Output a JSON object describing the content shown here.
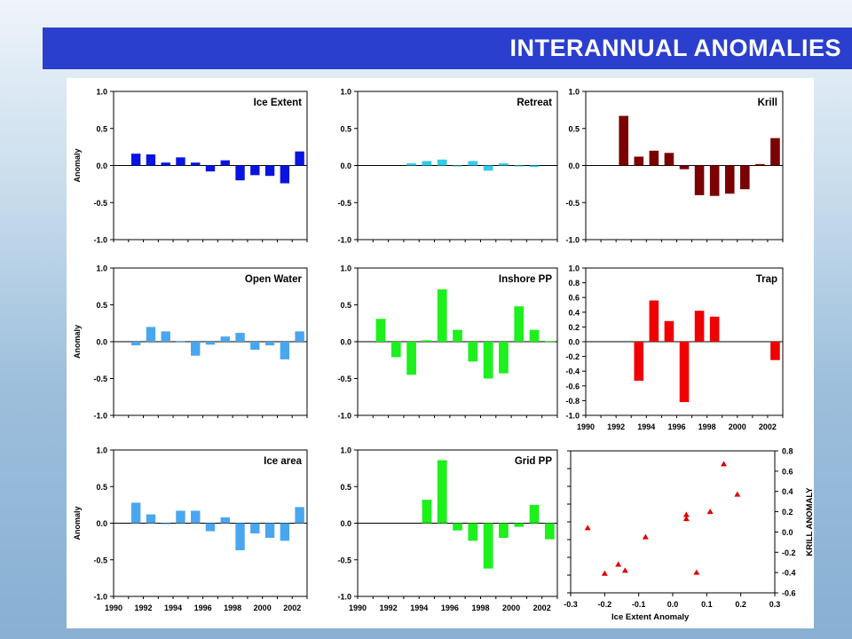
{
  "page": {
    "title": "INTERANNUAL ANOMALIES"
  },
  "chart_data": [
    {
      "id": "ice-extent",
      "type": "bar",
      "title": "Ice Extent",
      "ylabel": "Anomaly",
      "xlabel": "",
      "color": "#0a14e0",
      "ylim": [
        -1,
        1
      ],
      "yticks": [
        "1.0",
        "0.5",
        "0.0",
        "-0.5",
        "-1.0"
      ],
      "x": [
        1991,
        1992,
        1993,
        1994,
        1995,
        1996,
        1997,
        1998,
        1999,
        2000,
        2001,
        2002
      ],
      "values": [
        0.16,
        0.15,
        0.04,
        0.11,
        0.04,
        -0.08,
        0.07,
        -0.2,
        -0.13,
        -0.14,
        -0.24,
        0.19
      ]
    },
    {
      "id": "retreat",
      "type": "bar",
      "title": "Retreat",
      "ylabel": "",
      "xlabel": "",
      "color": "#33cbe8",
      "ylim": [
        -1,
        1
      ],
      "yticks": [
        "1.0",
        "0.5",
        "0.0",
        "-0.5",
        "-1.0"
      ],
      "x": [
        1993,
        1994,
        1995,
        1996,
        1997,
        1998,
        1999,
        2000,
        2001
      ],
      "values": [
        0.03,
        0.06,
        0.08,
        -0.01,
        0.06,
        -0.07,
        0.03,
        -0.01,
        -0.02
      ]
    },
    {
      "id": "krill",
      "type": "bar",
      "title": "Krill",
      "ylabel": "",
      "xlabel": "",
      "color": "#7a0000",
      "ylim": [
        -1,
        1
      ],
      "yticks": [
        "1.0",
        "0.5",
        "0.0",
        "-0.5",
        "-1.0"
      ],
      "x": [
        1992,
        1993,
        1994,
        1995,
        1996,
        1997,
        1998,
        1999,
        2000,
        2001,
        2002
      ],
      "values": [
        0.67,
        0.12,
        0.2,
        0.17,
        -0.05,
        -0.4,
        -0.41,
        -0.38,
        -0.32,
        0.02,
        0.37
      ]
    },
    {
      "id": "open-water",
      "type": "bar",
      "title": "Open Water",
      "ylabel": "Anomaly",
      "xlabel": "",
      "color": "#4aa6ee",
      "ylim": [
        -1,
        1
      ],
      "yticks": [
        "1.0",
        "0.5",
        "0.0",
        "-0.5",
        "-1.0"
      ],
      "x": [
        1991,
        1992,
        1993,
        1994,
        1995,
        1996,
        1997,
        1998,
        1999,
        2000,
        2001,
        2002
      ],
      "values": [
        -0.05,
        0.2,
        0.14,
        0.01,
        -0.19,
        -0.04,
        0.07,
        0.12,
        -0.11,
        -0.05,
        -0.24,
        0.14
      ]
    },
    {
      "id": "inshore-pp",
      "type": "bar",
      "title": "Inshore PP",
      "ylabel": "",
      "xlabel": "",
      "color": "#1ef01e",
      "ylim": [
        -1,
        1
      ],
      "yticks": [
        "1.0",
        "0.5",
        "0.0",
        "-0.5",
        "-1.0"
      ],
      "x": [
        1991,
        1992,
        1993,
        1994,
        1995,
        1996,
        1997,
        1998,
        1999,
        2000,
        2001,
        2002
      ],
      "values": [
        0.31,
        -0.21,
        -0.45,
        0.02,
        0.71,
        0.16,
        -0.27,
        -0.5,
        -0.43,
        0.48,
        0.16,
        0.01
      ]
    },
    {
      "id": "trap",
      "type": "bar",
      "title": "Trap",
      "ylabel": "",
      "xlabel": "",
      "color": "#f00000",
      "ylim": [
        -1,
        1
      ],
      "yticks": [
        "1.0",
        "0.8",
        "0.6",
        "0.4",
        "0.2",
        "0.0",
        "-0.2",
        "-0.4",
        "-0.6",
        "-0.8",
        "-1.0"
      ],
      "xticks": [
        "1990",
        "1992",
        "1994",
        "1996",
        "1998",
        "2000",
        "2002"
      ],
      "x": [
        1993,
        1994,
        1995,
        1996,
        1997,
        1998,
        2002
      ],
      "values": [
        -0.53,
        0.56,
        0.28,
        -0.82,
        0.42,
        0.34,
        -0.25
      ]
    },
    {
      "id": "ice-area",
      "type": "bar",
      "title": "Ice area",
      "ylabel": "Anomaly",
      "xlabel": "",
      "color": "#4aa6ee",
      "ylim": [
        -1,
        1
      ],
      "yticks": [
        "1.0",
        "0.5",
        "0.0",
        "-0.5",
        "-1.0"
      ],
      "xticks": [
        "1990",
        "1992",
        "1994",
        "1996",
        "1998",
        "2000",
        "2002"
      ],
      "x": [
        1991,
        1992,
        1993,
        1994,
        1995,
        1996,
        1997,
        1998,
        1999,
        2000,
        2001,
        2002
      ],
      "values": [
        0.28,
        0.12,
        -0.01,
        0.17,
        0.17,
        -0.11,
        0.08,
        -0.37,
        -0.14,
        -0.2,
        -0.24,
        0.22
      ]
    },
    {
      "id": "grid-pp",
      "type": "bar",
      "title": "Grid PP",
      "ylabel": "",
      "xlabel": "",
      "color": "#1ef01e",
      "ylim": [
        -1,
        1
      ],
      "yticks": [
        "1.0",
        "0.5",
        "0.0",
        "-0.5",
        "-1.0"
      ],
      "xticks": [
        "1990",
        "1992",
        "1994",
        "1996",
        "1998",
        "2000",
        "2002"
      ],
      "x": [
        1994,
        1995,
        1996,
        1997,
        1998,
        1999,
        2000,
        2001,
        2002
      ],
      "values": [
        0.32,
        0.86,
        -0.1,
        -0.24,
        -0.62,
        -0.2,
        -0.05,
        0.25,
        -0.22
      ]
    },
    {
      "id": "scatter",
      "type": "scatter",
      "title": "",
      "xlabel": "Ice Extent Anomaly",
      "ylabel": "KRILL ANOMALY",
      "color": "#e00000",
      "xlim": [
        -0.3,
        0.3
      ],
      "ylim": [
        -0.6,
        0.8
      ],
      "xticks": [
        "-0.3",
        "-0.2",
        "-0.1",
        "0.0",
        "0.1",
        "0.2",
        "0.3"
      ],
      "yticks": [
        "0.8",
        "0.6",
        "0.4",
        "0.2",
        "0.0",
        "-0.2",
        "-0.4",
        "-0.6"
      ],
      "points": [
        {
          "x": -0.25,
          "y": 0.04
        },
        {
          "x": -0.2,
          "y": -0.41
        },
        {
          "x": -0.16,
          "y": -0.32
        },
        {
          "x": -0.14,
          "y": -0.38
        },
        {
          "x": -0.08,
          "y": -0.05
        },
        {
          "x": 0.04,
          "y": 0.17
        },
        {
          "x": 0.04,
          "y": 0.13
        },
        {
          "x": 0.07,
          "y": -0.4
        },
        {
          "x": 0.11,
          "y": 0.2
        },
        {
          "x": 0.15,
          "y": 0.67
        },
        {
          "x": 0.19,
          "y": 0.37
        }
      ]
    }
  ]
}
